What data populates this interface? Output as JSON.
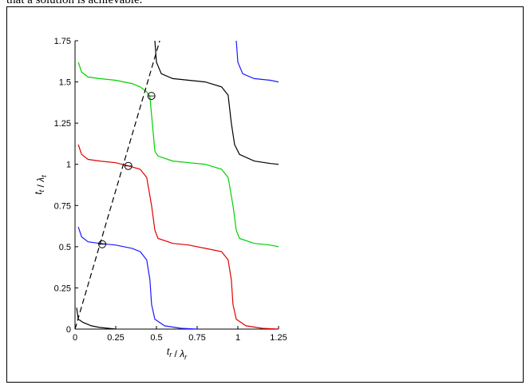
{
  "header": {
    "text": "that a solution is achievable."
  },
  "chart_data": {
    "type": "line",
    "title": "",
    "xlabel": "t_r / λ_r",
    "ylabel": "t_t / λ_t",
    "xlim": [
      0,
      1.25
    ],
    "ylim": [
      0,
      1.75
    ],
    "xticks": [
      "0",
      "0.25",
      "0.5",
      "0.75",
      "1",
      "1.25"
    ],
    "yticks": [
      "0",
      "0.25",
      "0.5",
      "0.75",
      "1",
      "1.25",
      "1.5",
      "1.75"
    ],
    "grid": false,
    "colors": {
      "black": "#000000",
      "blue": "#1a1aff",
      "red": "#e00000",
      "green": "#00d000",
      "dashed": "#000000"
    },
    "series": [
      {
        "color": "black",
        "points": [
          [
            0.01,
            0.13
          ],
          [
            0.02,
            0.06
          ],
          [
            0.05,
            0.04
          ],
          [
            0.1,
            0.02
          ],
          [
            0.15,
            0.01
          ],
          [
            0.25,
            0.0
          ]
        ]
      },
      {
        "color": "blue",
        "points": [
          [
            0.02,
            0.62
          ],
          [
            0.04,
            0.56
          ],
          [
            0.08,
            0.53
          ],
          [
            0.15,
            0.52
          ],
          [
            0.25,
            0.51
          ],
          [
            0.35,
            0.49
          ],
          [
            0.4,
            0.47
          ],
          [
            0.44,
            0.42
          ],
          [
            0.46,
            0.3
          ],
          [
            0.47,
            0.15
          ],
          [
            0.49,
            0.06
          ],
          [
            0.55,
            0.02
          ],
          [
            0.65,
            0.005
          ],
          [
            0.75,
            0.0
          ]
        ]
      },
      {
        "color": "red",
        "points": [
          [
            0.02,
            1.12
          ],
          [
            0.04,
            1.06
          ],
          [
            0.08,
            1.03
          ],
          [
            0.15,
            1.02
          ],
          [
            0.25,
            1.01
          ],
          [
            0.33,
            0.99
          ],
          [
            0.4,
            0.97
          ],
          [
            0.44,
            0.92
          ],
          [
            0.47,
            0.75
          ],
          [
            0.49,
            0.6
          ],
          [
            0.51,
            0.55
          ],
          [
            0.6,
            0.52
          ],
          [
            0.7,
            0.51
          ],
          [
            0.8,
            0.49
          ],
          [
            0.9,
            0.47
          ],
          [
            0.94,
            0.42
          ],
          [
            0.96,
            0.3
          ],
          [
            0.97,
            0.15
          ],
          [
            0.99,
            0.06
          ],
          [
            1.05,
            0.02
          ],
          [
            1.15,
            0.005
          ],
          [
            1.25,
            0.0
          ]
        ]
      },
      {
        "color": "green",
        "points": [
          [
            0.02,
            1.62
          ],
          [
            0.04,
            1.56
          ],
          [
            0.08,
            1.53
          ],
          [
            0.15,
            1.52
          ],
          [
            0.25,
            1.51
          ],
          [
            0.35,
            1.49
          ],
          [
            0.4,
            1.47
          ],
          [
            0.44,
            1.44
          ],
          [
            0.46,
            1.41
          ],
          [
            0.47,
            1.3
          ],
          [
            0.49,
            1.08
          ],
          [
            0.51,
            1.05
          ],
          [
            0.6,
            1.02
          ],
          [
            0.7,
            1.01
          ],
          [
            0.8,
            1.0
          ],
          [
            0.9,
            0.97
          ],
          [
            0.94,
            0.92
          ],
          [
            0.97,
            0.75
          ],
          [
            0.99,
            0.6
          ],
          [
            1.01,
            0.55
          ],
          [
            1.1,
            0.52
          ],
          [
            1.2,
            0.51
          ],
          [
            1.25,
            0.5
          ]
        ]
      },
      {
        "color": "black",
        "points": [
          [
            0.49,
            1.75
          ],
          [
            0.5,
            1.62
          ],
          [
            0.53,
            1.55
          ],
          [
            0.6,
            1.52
          ],
          [
            0.7,
            1.51
          ],
          [
            0.8,
            1.5
          ],
          [
            0.9,
            1.47
          ],
          [
            0.94,
            1.42
          ],
          [
            0.96,
            1.25
          ],
          [
            0.98,
            1.12
          ],
          [
            1.01,
            1.06
          ],
          [
            1.1,
            1.02
          ],
          [
            1.2,
            1.005
          ],
          [
            1.25,
            1.0
          ]
        ]
      },
      {
        "color": "blue",
        "points": [
          [
            0.99,
            1.75
          ],
          [
            1.0,
            1.62
          ],
          [
            1.03,
            1.55
          ],
          [
            1.1,
            1.52
          ],
          [
            1.2,
            1.51
          ],
          [
            1.25,
            1.5
          ]
        ]
      },
      {
        "color": "dashed",
        "dashed": true,
        "points": [
          [
            0.0,
            0.0
          ],
          [
            0.52,
            1.75
          ]
        ]
      }
    ],
    "markers": [
      [
        0.167,
        0.515
      ],
      [
        0.327,
        0.99
      ],
      [
        0.469,
        1.415
      ]
    ]
  }
}
